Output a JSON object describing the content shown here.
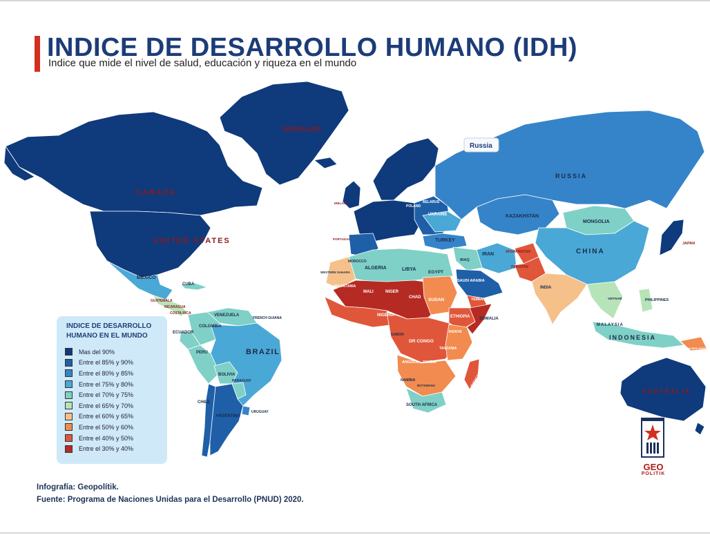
{
  "header": {
    "title": "INDICE DE DESARROLLO HUMANO (IDH)",
    "subtitle": "Indice que mide el nivel de salud, educación y riqueza en el mundo",
    "title_color": "#1c3c78",
    "accent_color": "#d1301f"
  },
  "palette": {
    "ocean": "#ffffff",
    "border": "#ffffff"
  },
  "legend": {
    "title_line1": "INDICE DE DESARROLLO",
    "title_line2": "HUMANO EN EL MUNDO",
    "items": [
      {
        "label": "Mas del 90%",
        "color": "#0f3a7c"
      },
      {
        "label": "Entre el 85% y 90%",
        "color": "#1e5fa8"
      },
      {
        "label": "Entre el 80% y 85%",
        "color": "#3584c9"
      },
      {
        "label": "Entre el 75% y 80%",
        "color": "#4aa8d6"
      },
      {
        "label": "Entre el 70% y 75%",
        "color": "#7fd0c6"
      },
      {
        "label": "Entre el 65% y 70%",
        "color": "#b7e3b8"
      },
      {
        "label": "Entre el 60% y 65%",
        "color": "#f6c08b"
      },
      {
        "label": "Entre el 50% y 60%",
        "color": "#f28b4f"
      },
      {
        "label": "Entre el 40% y 50%",
        "color": "#e0563a"
      },
      {
        "label": "Entre el 30% y 40%",
        "color": "#b52a22"
      }
    ]
  },
  "map_labels": [
    {
      "text": "GREENLAND",
      "level": 0
    },
    {
      "text": "CANADA",
      "level": 0
    },
    {
      "text": "UNITED STATES",
      "level": 0
    },
    {
      "text": "MEXICO",
      "level": 3
    },
    {
      "text": "CUBA",
      "level": 4
    },
    {
      "text": "GUATEMALA",
      "level": 5
    },
    {
      "text": "NICARAGUA",
      "level": 5
    },
    {
      "text": "COSTA RICA",
      "level": 4
    },
    {
      "text": "VENEZUELA",
      "level": 4
    },
    {
      "text": "COLOMBIA",
      "level": 4
    },
    {
      "text": "FRENCH GUIANA",
      "level": 2
    },
    {
      "text": "ECUADOR",
      "level": 4
    },
    {
      "text": "PERU",
      "level": 4
    },
    {
      "text": "BRAZIL",
      "level": 3
    },
    {
      "text": "BOLIVIA",
      "level": 4
    },
    {
      "text": "PARAGUAY",
      "level": 4
    },
    {
      "text": "CHILE",
      "level": 1
    },
    {
      "text": "ARGENTINA",
      "level": 1
    },
    {
      "text": "URUGUAY",
      "level": 2
    },
    {
      "text": "IRELAND",
      "level": 0
    },
    {
      "text": "PORTUGAL",
      "level": 1
    },
    {
      "text": "POLAND",
      "level": 1
    },
    {
      "text": "BELARUS",
      "level": 2
    },
    {
      "text": "UKRAINE",
      "level": 3
    },
    {
      "text": "TURKEY",
      "level": 2
    },
    {
      "text": "KAZAKHSTAN",
      "level": 2
    },
    {
      "text": "MONGOLIA",
      "level": 4
    },
    {
      "text": "RUSSIA",
      "level": 2
    },
    {
      "text": "CHINA",
      "level": 3
    },
    {
      "text": "JAPAN",
      "level": 0
    },
    {
      "text": "IRAN",
      "level": 3
    },
    {
      "text": "IRAQ",
      "level": 4
    },
    {
      "text": "AFGHANISTAN",
      "level": 8
    },
    {
      "text": "PAKISTAN",
      "level": 8
    },
    {
      "text": "INDIA",
      "level": 6
    },
    {
      "text": "SAUDI ARABIA",
      "level": 1
    },
    {
      "text": "YEMEN",
      "level": 8
    },
    {
      "text": "MOROCCO",
      "level": 5
    },
    {
      "text": "ALGERIA",
      "level": 4
    },
    {
      "text": "LIBYA",
      "level": 4
    },
    {
      "text": "EGYPT",
      "level": 4
    },
    {
      "text": "WESTERN SAHARA",
      "level": 7
    },
    {
      "text": "MAURITANIA",
      "level": 7
    },
    {
      "text": "MALI",
      "level": 8
    },
    {
      "text": "NIGER",
      "level": 9
    },
    {
      "text": "CHAD",
      "level": 9
    },
    {
      "text": "SUDAN",
      "level": 7
    },
    {
      "text": "NIGERIA",
      "level": 7
    },
    {
      "text": "ETHIOPIA",
      "level": 8
    },
    {
      "text": "SOMALIA",
      "level": 9
    },
    {
      "text": "GABON",
      "level": 5
    },
    {
      "text": "DR CONGO",
      "level": 8
    },
    {
      "text": "KENYA",
      "level": 7
    },
    {
      "text": "TANZANIA",
      "level": 7
    },
    {
      "text": "ANGOLA",
      "level": 7
    },
    {
      "text": "ZAMBIA",
      "level": 7
    },
    {
      "text": "NAMIBIA",
      "level": 6
    },
    {
      "text": "BOTSWANA",
      "level": 5
    },
    {
      "text": "SOUTH AFRICA",
      "level": 4
    },
    {
      "text": "MADAGASCAR",
      "level": 8
    },
    {
      "text": "VIETNAM",
      "level": 5
    },
    {
      "text": "PHILIPPINES",
      "level": 5
    },
    {
      "text": "MALAYSIA",
      "level": 3
    },
    {
      "text": "INDONESIA",
      "level": 4
    },
    {
      "text": "PAPUA NEW GUINEA",
      "level": 7
    },
    {
      "text": "AUSTRALIA",
      "level": 0
    }
  ],
  "tooltip": {
    "text": "Russia"
  },
  "credits": {
    "line1": "Infografía: Geopolítik.",
    "line2": "Fuente: Programa de Naciones Unidas para el Desarrollo (PNUD) 2020."
  },
  "logo": {
    "word": "GEO",
    "sub": "POLITIK",
    "color": "#b11818"
  }
}
